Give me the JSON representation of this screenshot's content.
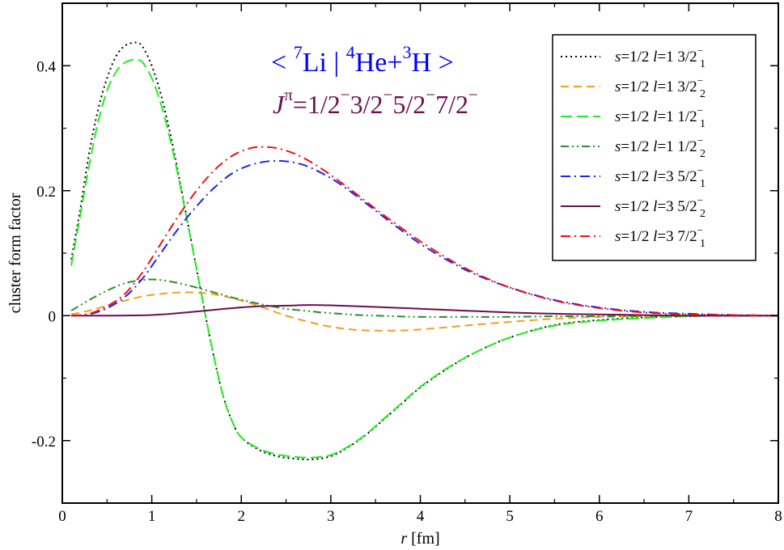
{
  "chart_data": {
    "type": "line",
    "xlabel": "r [fm]",
    "ylabel": "cluster form factor",
    "xlim": [
      0,
      8
    ],
    "ylim": [
      -0.3,
      0.5
    ],
    "x_ticks": [
      0,
      1,
      2,
      3,
      4,
      5,
      6,
      7,
      8
    ],
    "x_tick_labels": [
      "0",
      "1",
      "2",
      "3",
      "4",
      "5",
      "6",
      "7",
      "8"
    ],
    "y_ticks": [
      -0.2,
      0,
      0.2,
      0.4
    ],
    "y_tick_labels": [
      "-0.2",
      "0",
      "0.2",
      "0.4"
    ],
    "grid": false,
    "legend_position": "top-right",
    "title_lines": {
      "line1_colour": "#0000ff",
      "line1_parts": [
        "< ",
        "7",
        "Li | ",
        "4",
        "He+",
        "3",
        "H >"
      ],
      "line2_colour": "#6b0f4f",
      "line2_parts": [
        "J",
        "π",
        "=1/2",
        "−",
        "3/2",
        "−",
        "5/2",
        "−",
        "7/2",
        "−"
      ]
    },
    "series": [
      {
        "name": "s=1/2 l=1 3/2−1",
        "legend": {
          "s": "s",
          "s_val": "=1/2 ",
          "l": "l",
          "l_val": "=1 ",
          "j": "3/2",
          "sup": "−",
          "sub": "1"
        },
        "color": "#000000",
        "dash": "2,4",
        "width": 2,
        "x": [
          0.1,
          0.2,
          0.3,
          0.4,
          0.5,
          0.6,
          0.7,
          0.8,
          0.85,
          0.9,
          1.0,
          1.1,
          1.2,
          1.3,
          1.4,
          1.5,
          1.6,
          1.7,
          1.8,
          1.9,
          2.0,
          2.2,
          2.4,
          2.6,
          2.8,
          3.0,
          3.2,
          3.4,
          3.6,
          3.8,
          4.0,
          4.3,
          4.6,
          5.0,
          5.5,
          6.0,
          6.5,
          7.0,
          7.5,
          8.0
        ],
        "y": [
          0.09,
          0.17,
          0.26,
          0.33,
          0.38,
          0.415,
          0.432,
          0.437,
          0.436,
          0.43,
          0.4,
          0.355,
          0.295,
          0.225,
          0.15,
          0.075,
          0.0,
          -0.07,
          -0.13,
          -0.17,
          -0.195,
          -0.215,
          -0.225,
          -0.229,
          -0.23,
          -0.225,
          -0.21,
          -0.19,
          -0.165,
          -0.14,
          -0.115,
          -0.085,
          -0.06,
          -0.035,
          -0.015,
          -0.007,
          -0.003,
          -0.001,
          0.0,
          0.0
        ]
      },
      {
        "name": "s=1/2 l=1 3/2−2",
        "legend": {
          "s": "s",
          "s_val": "=1/2 ",
          "l": "l",
          "l_val": "=1 ",
          "j": "3/2",
          "sup": "−",
          "sub": "2"
        },
        "color": "#f0a020",
        "dash": "10,6",
        "width": 2,
        "x": [
          0.1,
          0.3,
          0.5,
          0.7,
          0.9,
          1.1,
          1.3,
          1.5,
          1.7,
          1.9,
          2.1,
          2.3,
          2.5,
          2.7,
          2.9,
          3.1,
          3.3,
          3.5,
          3.7,
          3.9,
          4.1,
          4.5,
          5.0,
          5.5,
          6.0,
          6.5,
          7.0,
          8.0
        ],
        "y": [
          0.002,
          0.008,
          0.016,
          0.024,
          0.031,
          0.035,
          0.037,
          0.037,
          0.034,
          0.028,
          0.02,
          0.01,
          0.0,
          -0.008,
          -0.015,
          -0.02,
          -0.023,
          -0.024,
          -0.024,
          -0.023,
          -0.021,
          -0.016,
          -0.01,
          -0.005,
          -0.002,
          -0.001,
          0.0,
          0.0
        ]
      },
      {
        "name": "s=1/2 l=1 1/2−1",
        "legend": {
          "s": "s",
          "s_val": "=1/2 ",
          "l": "l",
          "l_val": "=1 ",
          "j": "1/2",
          "sup": "−",
          "sub": "1"
        },
        "color": "#22ee22",
        "dash": "14,6",
        "width": 2,
        "x": [
          0.1,
          0.2,
          0.3,
          0.4,
          0.5,
          0.6,
          0.7,
          0.8,
          0.85,
          0.9,
          1.0,
          1.1,
          1.2,
          1.3,
          1.4,
          1.5,
          1.6,
          1.7,
          1.8,
          1.9,
          2.0,
          2.2,
          2.4,
          2.6,
          2.8,
          3.0,
          3.2,
          3.4,
          3.6,
          3.8,
          4.0,
          4.3,
          4.6,
          5.0,
          5.5,
          6.0,
          6.5,
          7.0,
          7.5,
          8.0
        ],
        "y": [
          0.08,
          0.16,
          0.24,
          0.31,
          0.36,
          0.39,
          0.405,
          0.41,
          0.409,
          0.405,
          0.38,
          0.34,
          0.285,
          0.22,
          0.148,
          0.075,
          0.0,
          -0.07,
          -0.13,
          -0.17,
          -0.195,
          -0.213,
          -0.222,
          -0.226,
          -0.227,
          -0.223,
          -0.209,
          -0.189,
          -0.164,
          -0.139,
          -0.114,
          -0.084,
          -0.06,
          -0.035,
          -0.016,
          -0.008,
          -0.004,
          -0.001,
          0.0,
          0.0
        ]
      },
      {
        "name": "s=1/2 l=1 1/2−2",
        "legend": {
          "s": "s",
          "s_val": "=1/2 ",
          "l": "l",
          "l_val": "=1 ",
          "j": "1/2",
          "sup": "−",
          "sub": "2"
        },
        "color": "#2a8f2a",
        "dash": "10,4,2,4,2,4",
        "width": 2,
        "x": [
          0.1,
          0.3,
          0.5,
          0.7,
          0.9,
          1.0,
          1.1,
          1.3,
          1.5,
          1.7,
          1.9,
          2.1,
          2.3,
          2.5,
          2.7,
          2.9,
          3.1,
          3.3,
          3.5,
          3.7,
          4.0,
          4.5,
          5.0,
          5.5,
          6.0,
          7.0,
          8.0
        ],
        "y": [
          0.008,
          0.025,
          0.04,
          0.052,
          0.057,
          0.058,
          0.057,
          0.052,
          0.045,
          0.037,
          0.029,
          0.022,
          0.016,
          0.011,
          0.008,
          0.005,
          0.003,
          0.001,
          0.0,
          -0.001,
          -0.002,
          -0.002,
          -0.002,
          -0.001,
          -0.001,
          0.0,
          0.0
        ]
      },
      {
        "name": "s=1/2 l=3 5/2−1",
        "legend": {
          "s": "s",
          "s_val": "=1/2 ",
          "l": "l",
          "l_val": "=3 ",
          "j": "5/2",
          "sup": "−",
          "sub": "1"
        },
        "color": "#1e22ee",
        "dash": "12,5,2,5",
        "width": 2,
        "x": [
          0.1,
          0.3,
          0.5,
          0.7,
          0.9,
          1.1,
          1.3,
          1.5,
          1.7,
          1.9,
          2.1,
          2.3,
          2.5,
          2.7,
          2.9,
          3.1,
          3.3,
          3.5,
          3.7,
          4.0,
          4.3,
          4.6,
          5.0,
          5.5,
          6.0,
          6.5,
          7.0,
          7.5,
          8.0
        ],
        "y": [
          0.0,
          0.002,
          0.012,
          0.03,
          0.06,
          0.1,
          0.14,
          0.175,
          0.205,
          0.228,
          0.241,
          0.247,
          0.247,
          0.241,
          0.228,
          0.211,
          0.19,
          0.168,
          0.146,
          0.115,
          0.089,
          0.067,
          0.045,
          0.025,
          0.013,
          0.006,
          0.003,
          0.001,
          0.0
        ]
      },
      {
        "name": "s=1/2 l=3 5/2−2",
        "legend": {
          "s": "s",
          "s_val": "=1/2 ",
          "l": "l",
          "l_val": "=3 ",
          "j": "5/2",
          "sup": "−",
          "sub": "2"
        },
        "color": "#6b0f4f",
        "dash": "",
        "width": 2,
        "x": [
          0.1,
          0.5,
          1.0,
          1.3,
          1.6,
          1.9,
          2.2,
          2.5,
          2.8,
          3.1,
          3.5,
          4.0,
          4.5,
          5.0,
          5.5,
          6.0,
          7.0,
          8.0
        ],
        "y": [
          0.0,
          0.0,
          0.001,
          0.004,
          0.008,
          0.012,
          0.015,
          0.016,
          0.017,
          0.016,
          0.014,
          0.011,
          0.008,
          0.005,
          0.003,
          0.002,
          0.0,
          0.0
        ]
      },
      {
        "name": "s=1/2 l=3 7/2−1",
        "legend": {
          "s": "s",
          "s_val": "=1/2 ",
          "l": "l",
          "l_val": "=3 ",
          "j": "7/2",
          "sup": "−",
          "sub": "1"
        },
        "color": "#ee1111",
        "dash": "12,5,2,5",
        "width": 2,
        "x": [
          0.1,
          0.3,
          0.5,
          0.7,
          0.9,
          1.1,
          1.3,
          1.5,
          1.7,
          1.9,
          2.1,
          2.25,
          2.4,
          2.6,
          2.8,
          3.0,
          3.2,
          3.4,
          3.6,
          3.8,
          4.0,
          4.3,
          4.6,
          5.0,
          5.5,
          6.0,
          6.5,
          7.0,
          7.5,
          8.0
        ],
        "y": [
          0.0,
          0.003,
          0.015,
          0.035,
          0.07,
          0.115,
          0.16,
          0.2,
          0.233,
          0.256,
          0.268,
          0.27,
          0.268,
          0.259,
          0.244,
          0.225,
          0.204,
          0.182,
          0.16,
          0.139,
          0.119,
          0.092,
          0.069,
          0.045,
          0.024,
          0.012,
          0.005,
          0.002,
          0.001,
          0.0
        ]
      }
    ]
  }
}
